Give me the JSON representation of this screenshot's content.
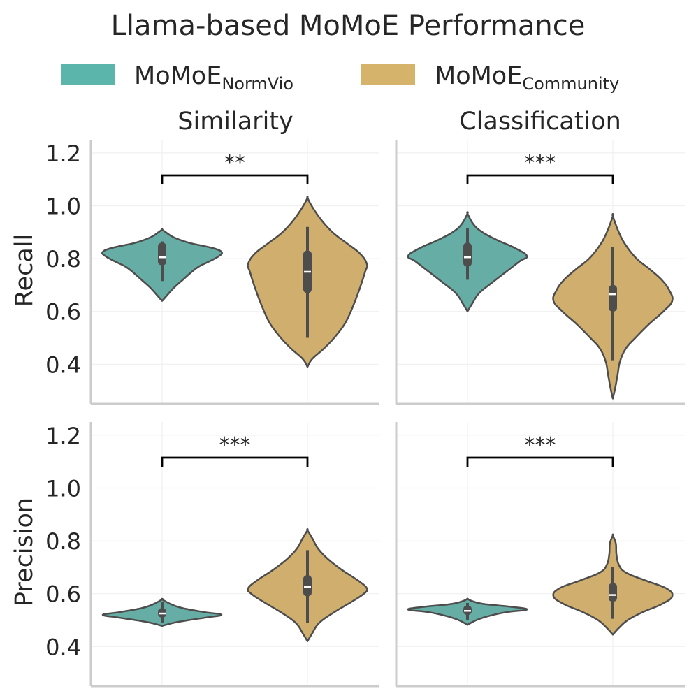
{
  "chart_data": {
    "type": "violin",
    "title": "Llama-based MoMoE Performance",
    "legend": {
      "placement": "top-center",
      "entries": [
        {
          "base": "MoMoE",
          "sub": "NormVio",
          "color": "#5bb5aa"
        },
        {
          "base": "MoMoE",
          "sub": "Community",
          "color": "#d5b36b"
        }
      ]
    },
    "columns": [
      "Similarity",
      "Classification"
    ],
    "rows": [
      "Recall",
      "Precision"
    ],
    "ylim": [
      0.25,
      1.25
    ],
    "yticks": [
      "0.4",
      "0.6",
      "0.8",
      "1.0",
      "1.2"
    ],
    "grid": true,
    "panels": [
      {
        "row": "Recall",
        "column": "Similarity",
        "significance": "**",
        "violins": [
          {
            "group": "NormVio",
            "median": 0.805,
            "q1": 0.775,
            "q3": 0.86,
            "whisker_low": 0.715,
            "whisker_high": 0.865,
            "profile": [
              [
                0.64,
                0
              ],
              [
                0.66,
                0.08
              ],
              [
                0.69,
                0.2
              ],
              [
                0.72,
                0.35
              ],
              [
                0.75,
                0.5
              ],
              [
                0.77,
                0.62
              ],
              [
                0.79,
                0.8
              ],
              [
                0.81,
                0.96
              ],
              [
                0.825,
                1.0
              ],
              [
                0.84,
                0.85
              ],
              [
                0.86,
                0.45
              ],
              [
                0.88,
                0.2
              ],
              [
                0.9,
                0.06
              ],
              [
                0.91,
                0
              ]
            ]
          },
          {
            "group": "Community",
            "median": 0.75,
            "q1": 0.67,
            "q3": 0.83,
            "whisker_low": 0.5,
            "whisker_high": 0.92,
            "profile": [
              [
                0.39,
                0
              ],
              [
                0.42,
                0.08
              ],
              [
                0.46,
                0.28
              ],
              [
                0.5,
                0.45
              ],
              [
                0.55,
                0.62
              ],
              [
                0.6,
                0.73
              ],
              [
                0.65,
                0.82
              ],
              [
                0.7,
                0.9
              ],
              [
                0.75,
                0.97
              ],
              [
                0.78,
                1.0
              ],
              [
                0.82,
                0.88
              ],
              [
                0.86,
                0.65
              ],
              [
                0.9,
                0.42
              ],
              [
                0.95,
                0.22
              ],
              [
                1.0,
                0.07
              ],
              [
                1.03,
                0
              ]
            ]
          }
        ]
      },
      {
        "row": "Recall",
        "column": "Classification",
        "significance": "***",
        "violins": [
          {
            "group": "NormVio",
            "median": 0.805,
            "q1": 0.77,
            "q3": 0.86,
            "whisker_low": 0.72,
            "whisker_high": 0.915,
            "profile": [
              [
                0.6,
                0
              ],
              [
                0.63,
                0.08
              ],
              [
                0.67,
                0.2
              ],
              [
                0.71,
                0.42
              ],
              [
                0.75,
                0.65
              ],
              [
                0.79,
                0.88
              ],
              [
                0.81,
                1.0
              ],
              [
                0.84,
                0.8
              ],
              [
                0.87,
                0.5
              ],
              [
                0.9,
                0.25
              ],
              [
                0.93,
                0.1
              ],
              [
                0.97,
                0
              ]
            ]
          },
          {
            "group": "Community",
            "median": 0.665,
            "q1": 0.6,
            "q3": 0.7,
            "whisker_low": 0.415,
            "whisker_high": 0.845,
            "profile": [
              [
                0.27,
                0
              ],
              [
                0.31,
                0.04
              ],
              [
                0.36,
                0.08
              ],
              [
                0.41,
                0.12
              ],
              [
                0.46,
                0.22
              ],
              [
                0.5,
                0.38
              ],
              [
                0.55,
                0.6
              ],
              [
                0.6,
                0.85
              ],
              [
                0.64,
                1.0
              ],
              [
                0.68,
                0.95
              ],
              [
                0.72,
                0.82
              ],
              [
                0.76,
                0.62
              ],
              [
                0.8,
                0.4
              ],
              [
                0.85,
                0.22
              ],
              [
                0.9,
                0.1
              ],
              [
                0.96,
                0
              ]
            ]
          }
        ]
      },
      {
        "row": "Precision",
        "column": "Similarity",
        "significance": "***",
        "violins": [
          {
            "group": "NormVio",
            "median": 0.525,
            "q1": 0.51,
            "q3": 0.545,
            "whisker_low": 0.49,
            "whisker_high": 0.57,
            "profile": [
              [
                0.478,
                0
              ],
              [
                0.49,
                0.2
              ],
              [
                0.5,
                0.45
              ],
              [
                0.51,
                0.75
              ],
              [
                0.52,
                1.0
              ],
              [
                0.53,
                0.72
              ],
              [
                0.545,
                0.35
              ],
              [
                0.56,
                0.15
              ],
              [
                0.578,
                0
              ]
            ]
          },
          {
            "group": "Community",
            "median": 0.625,
            "q1": 0.59,
            "q3": 0.67,
            "whisker_low": 0.49,
            "whisker_high": 0.765,
            "profile": [
              [
                0.42,
                0
              ],
              [
                0.45,
                0.08
              ],
              [
                0.49,
                0.2
              ],
              [
                0.53,
                0.45
              ],
              [
                0.57,
                0.75
              ],
              [
                0.6,
                0.95
              ],
              [
                0.62,
                1.0
              ],
              [
                0.65,
                0.85
              ],
              [
                0.69,
                0.58
              ],
              [
                0.73,
                0.35
              ],
              [
                0.77,
                0.18
              ],
              [
                0.81,
                0.08
              ],
              [
                0.84,
                0
              ]
            ]
          }
        ]
      },
      {
        "row": "Precision",
        "column": "Classification",
        "significance": "***",
        "violins": [
          {
            "group": "NormVio",
            "median": 0.535,
            "q1": 0.52,
            "q3": 0.555,
            "whisker_low": 0.5,
            "whisker_high": 0.565,
            "profile": [
              [
                0.482,
                0
              ],
              [
                0.5,
                0.15
              ],
              [
                0.515,
                0.35
              ],
              [
                0.53,
                0.65
              ],
              [
                0.54,
                1.0
              ],
              [
                0.55,
                0.75
              ],
              [
                0.56,
                0.3
              ],
              [
                0.57,
                0.1
              ],
              [
                0.58,
                0
              ]
            ]
          },
          {
            "group": "Community",
            "median": 0.595,
            "q1": 0.57,
            "q3": 0.64,
            "whisker_low": 0.505,
            "whisker_high": 0.7,
            "profile": [
              [
                0.445,
                0
              ],
              [
                0.47,
                0.1
              ],
              [
                0.5,
                0.25
              ],
              [
                0.53,
                0.5
              ],
              [
                0.56,
                0.82
              ],
              [
                0.59,
                1.0
              ],
              [
                0.62,
                0.9
              ],
              [
                0.65,
                0.55
              ],
              [
                0.68,
                0.22
              ],
              [
                0.71,
                0.1
              ],
              [
                0.75,
                0.06
              ],
              [
                0.79,
                0.05
              ],
              [
                0.82,
                0
              ]
            ]
          }
        ]
      }
    ]
  }
}
